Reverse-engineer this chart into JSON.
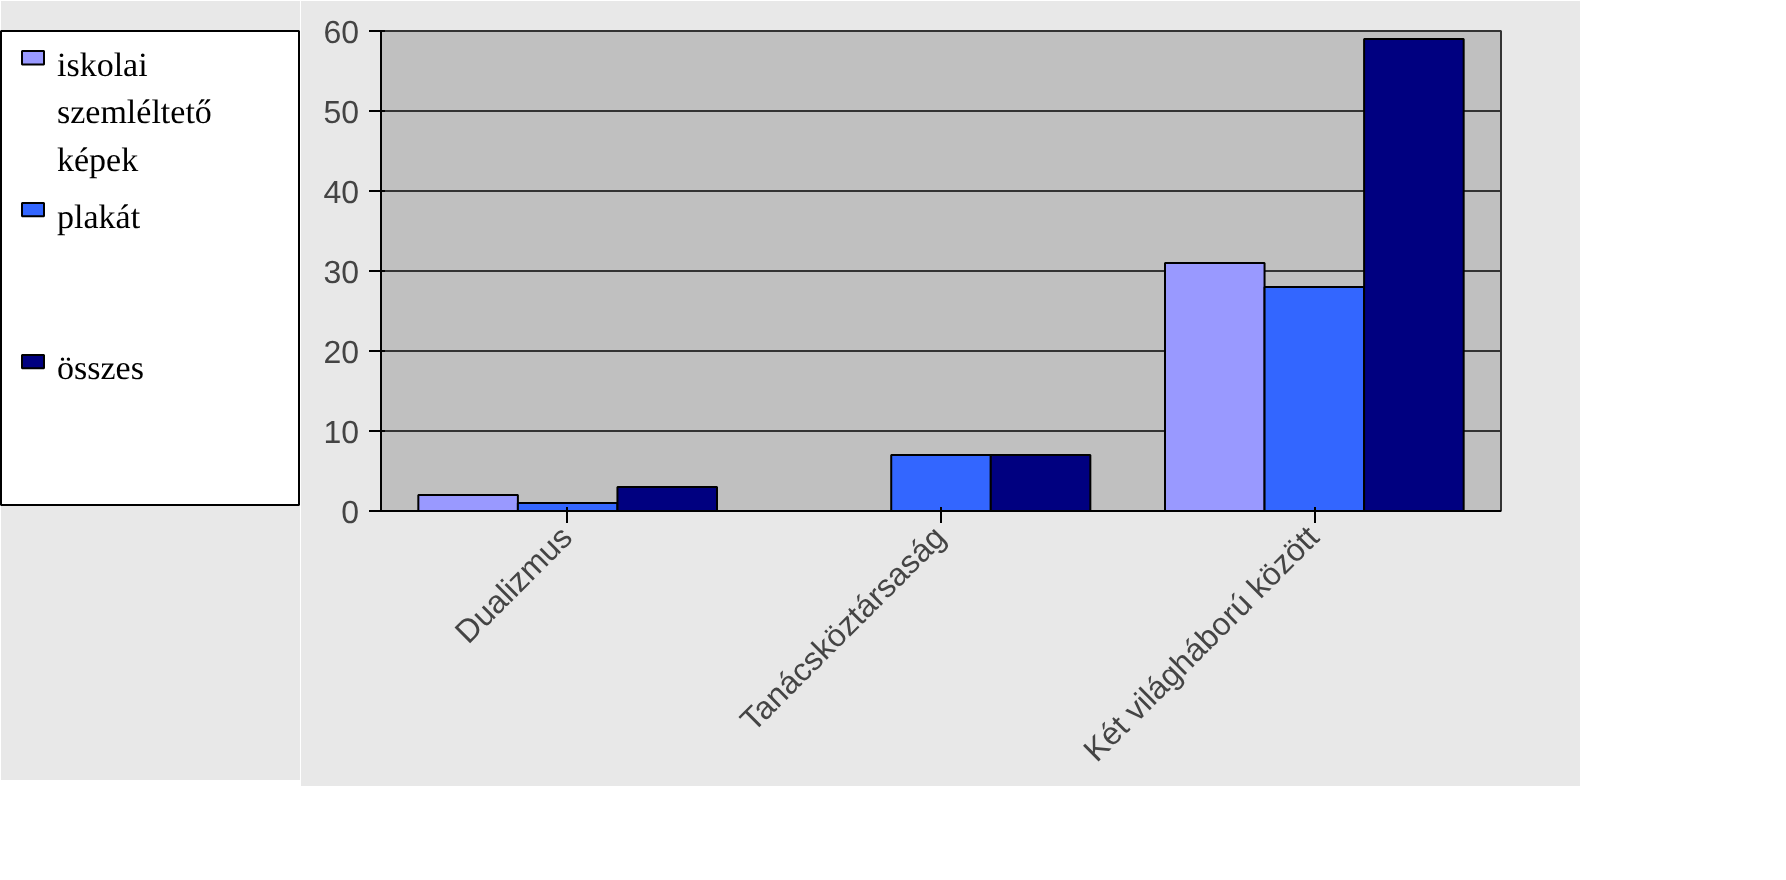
{
  "chart_data": {
    "type": "bar",
    "categories": [
      "Dualizmus",
      "Tanácsköztársaság",
      "Két világháború között"
    ],
    "series": [
      {
        "name": "iskolai szemléltető képek",
        "color": "#9999ff",
        "values": [
          2,
          0,
          31
        ]
      },
      {
        "name": "plakát",
        "color": "#3366ff",
        "values": [
          1,
          7,
          28
        ]
      },
      {
        "name": "összes",
        "color": "#000080",
        "values": [
          3,
          7,
          59
        ]
      }
    ],
    "ylim": [
      0,
      60
    ],
    "yticks": [
      0,
      10,
      20,
      30,
      40,
      50,
      60
    ],
    "grid": "y",
    "legend": "left"
  }
}
